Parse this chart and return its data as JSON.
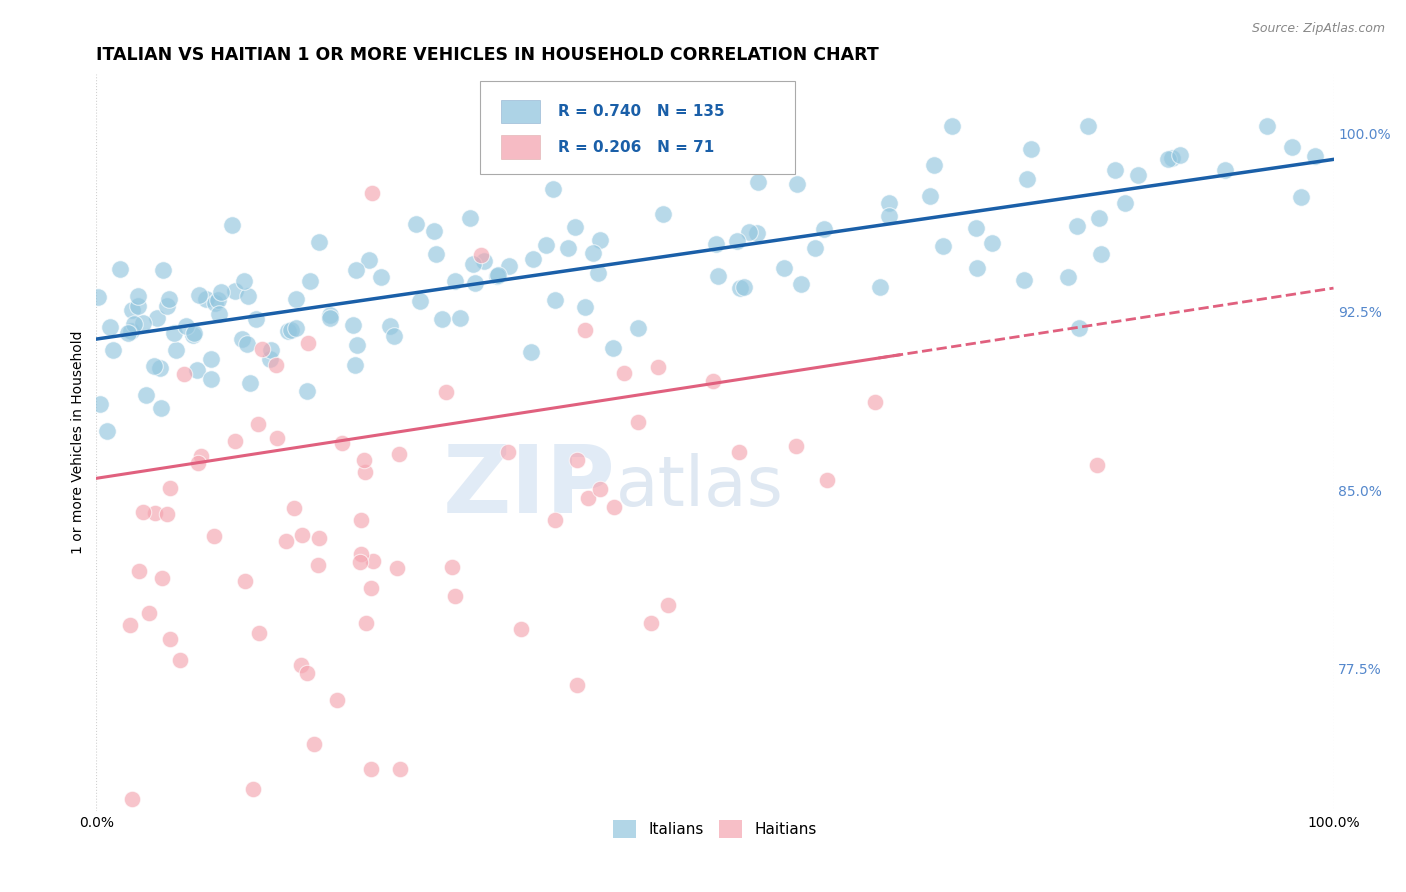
{
  "title": "ITALIAN VS HAITIAN 1 OR MORE VEHICLES IN HOUSEHOLD CORRELATION CHART",
  "source_text": "Source: ZipAtlas.com",
  "ylabel": "1 or more Vehicles in Household",
  "xlim": [
    0.0,
    1.0
  ],
  "ylim": [
    0.715,
    1.025
  ],
  "ytick_labels": [
    "77.5%",
    "85.0%",
    "92.5%",
    "100.0%"
  ],
  "ytick_values": [
    0.775,
    0.85,
    0.925,
    1.0
  ],
  "xtick_labels": [
    "0.0%",
    "100.0%"
  ],
  "xtick_values": [
    0.0,
    1.0
  ],
  "italian_color": "#92c5de",
  "haitian_color": "#f4a5b0",
  "italian_line_color": "#1a5fa8",
  "haitian_line_color": "#e0607e",
  "R_italian": 0.74,
  "N_italian": 135,
  "R_haitian": 0.206,
  "N_haitian": 71,
  "legend_label_italian": "Italians",
  "legend_label_haitian": "Haitians",
  "watermark_zip": "ZIP",
  "watermark_atlas": "atlas",
  "background_color": "#ffffff",
  "grid_color": "#cccccc",
  "title_color": "#000000",
  "right_tick_color": "#5588cc",
  "legend_text_color": "#1a5fa8",
  "legend_R_N_color": "#1a5fa8"
}
